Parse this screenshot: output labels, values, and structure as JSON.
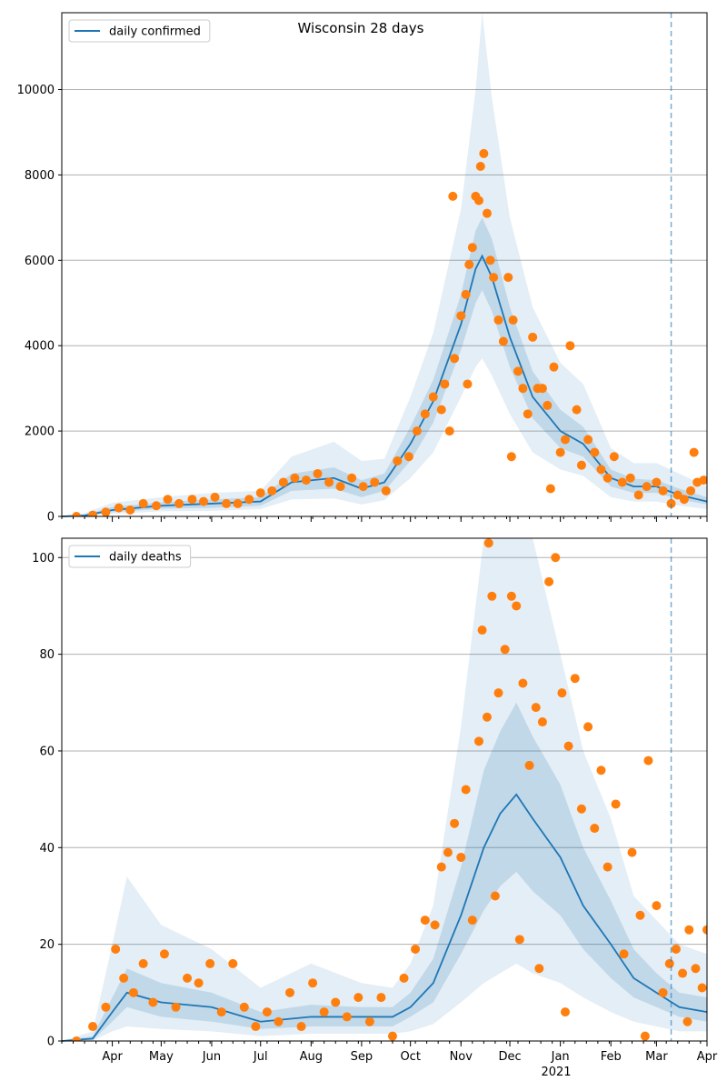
{
  "figure_title": "Wisconsin 28 days",
  "colors": {
    "line": "#1f77b4",
    "band": "#1f77b4",
    "points": "#ff7f0e",
    "grid": "#b0b0b0",
    "marker_line": "#1f77b4"
  },
  "x_axis": {
    "tick_labels": [
      "Apr",
      "May",
      "Jun",
      "Jul",
      "Aug",
      "Sep",
      "Oct",
      "Nov",
      "Dec",
      "Jan",
      "Feb",
      "Mar",
      "Apr"
    ],
    "tick_dates": [
      "2020-04-01",
      "2020-05-01",
      "2020-06-01",
      "2020-07-01",
      "2020-08-01",
      "2020-09-01",
      "2020-10-01",
      "2020-11-01",
      "2020-12-01",
      "2021-01-01",
      "2021-02-01",
      "2021-03-01",
      "2021-04-01"
    ],
    "year_label": "2021",
    "range": [
      "2020-03-01",
      "2021-04-01"
    ],
    "forecast_start": "2021-03-10"
  },
  "chart_data": [
    {
      "type": "line",
      "legend": "daily confirmed",
      "legend_position": "top-left",
      "grid": "horizontal",
      "ylim": [
        0,
        11800
      ],
      "yticks": [
        0,
        2000,
        4000,
        6000,
        8000,
        10000
      ],
      "x": [
        "2020-03-01",
        "2020-03-15",
        "2020-04-01",
        "2020-05-01",
        "2020-06-01",
        "2020-07-01",
        "2020-07-20",
        "2020-08-15",
        "2020-09-01",
        "2020-09-15",
        "2020-10-01",
        "2020-10-15",
        "2020-11-01",
        "2020-11-10",
        "2020-11-14",
        "2020-11-20",
        "2020-12-01",
        "2020-12-15",
        "2021-01-01",
        "2021-01-15",
        "2021-02-01",
        "2021-02-15",
        "2021-03-01",
        "2021-03-15",
        "2021-04-01"
      ],
      "median": [
        0,
        20,
        150,
        250,
        300,
        350,
        800,
        900,
        650,
        800,
        1700,
        2700,
        4500,
        5800,
        6100,
        5600,
        4200,
        2800,
        2000,
        1700,
        900,
        700,
        700,
        500,
        350
      ],
      "band_inner": {
        "lower": [
          0,
          10,
          100,
          180,
          200,
          250,
          600,
          650,
          450,
          600,
          1300,
          2200,
          3900,
          5000,
          5300,
          4800,
          3500,
          2300,
          1600,
          1400,
          700,
          550,
          550,
          400,
          280
        ],
        "upper": [
          0,
          40,
          220,
          330,
          400,
          450,
          1000,
          1150,
          850,
          1000,
          2100,
          3200,
          5200,
          6700,
          7000,
          6500,
          4900,
          3400,
          2500,
          2100,
          1100,
          880,
          850,
          650,
          450
        ]
      },
      "band_outer": {
        "lower": [
          0,
          5,
          60,
          120,
          130,
          170,
          400,
          420,
          280,
          380,
          900,
          1500,
          2800,
          3500,
          3700,
          3300,
          2400,
          1500,
          1100,
          950,
          450,
          350,
          350,
          250,
          170
        ],
        "upper": [
          0,
          80,
          320,
          450,
          550,
          600,
          1400,
          1750,
          1300,
          1350,
          2800,
          4300,
          7200,
          10000,
          11800,
          9800,
          7000,
          4900,
          3600,
          3100,
          1600,
          1250,
          1250,
          1000,
          700
        ]
      },
      "points": {
        "x": [
          "2020-03-10",
          "2020-03-20",
          "2020-03-28",
          "2020-04-05",
          "2020-04-12",
          "2020-04-20",
          "2020-04-28",
          "2020-05-05",
          "2020-05-12",
          "2020-05-20",
          "2020-05-27",
          "2020-06-03",
          "2020-06-10",
          "2020-06-17",
          "2020-06-24",
          "2020-07-01",
          "2020-07-08",
          "2020-07-15",
          "2020-07-22",
          "2020-07-29",
          "2020-08-05",
          "2020-08-12",
          "2020-08-19",
          "2020-08-26",
          "2020-09-02",
          "2020-09-09",
          "2020-09-16",
          "2020-09-23",
          "2020-09-30",
          "2020-10-05",
          "2020-10-10",
          "2020-10-15",
          "2020-10-20",
          "2020-10-22",
          "2020-10-25",
          "2020-10-28",
          "2020-11-01",
          "2020-11-04",
          "2020-11-06",
          "2020-11-08",
          "2020-11-10",
          "2020-11-12",
          "2020-11-13",
          "2020-11-15",
          "2020-11-17",
          "2020-11-19",
          "2020-11-21",
          "2020-11-24",
          "2020-11-27",
          "2020-11-30",
          "2020-12-03",
          "2020-12-06",
          "2020-12-09",
          "2020-12-12",
          "2020-12-15",
          "2020-12-18",
          "2020-12-21",
          "2020-12-24",
          "2020-12-28",
          "2021-01-01",
          "2021-01-04",
          "2021-01-07",
          "2021-01-11",
          "2021-01-14",
          "2021-01-18",
          "2021-01-22",
          "2021-01-26",
          "2021-01-30",
          "2021-02-03",
          "2021-02-08",
          "2021-02-13",
          "2021-02-18",
          "2021-02-23",
          "2021-03-01",
          "2021-03-05",
          "2021-03-10",
          "2021-03-14",
          "2021-03-18",
          "2021-03-22",
          "2021-03-26",
          "2021-03-30",
          "2021-03-24",
          "2020-10-27",
          "2020-11-05",
          "2020-12-02",
          "2020-12-26"
        ],
        "y": [
          0,
          30,
          100,
          200,
          150,
          300,
          250,
          400,
          300,
          400,
          350,
          450,
          300,
          300,
          400,
          550,
          600,
          800,
          900,
          850,
          1000,
          800,
          700,
          900,
          700,
          800,
          600,
          1300,
          1400,
          2000,
          2400,
          2800,
          2500,
          3100,
          2000,
          3700,
          4700,
          5200,
          5900,
          6300,
          7500,
          7400,
          8200,
          8500,
          7100,
          6000,
          5600,
          4600,
          4100,
          5600,
          4600,
          3400,
          3000,
          2400,
          4200,
          3000,
          3000,
          2600,
          3500,
          1500,
          1800,
          4000,
          2500,
          1200,
          1800,
          1500,
          1100,
          900,
          1400,
          800,
          900,
          500,
          700,
          800,
          600,
          300,
          500,
          400,
          600,
          800,
          850,
          1500,
          7500,
          3100,
          1400,
          650
        ]
      }
    },
    {
      "type": "line",
      "legend": "daily deaths",
      "legend_position": "top-left",
      "grid": "horizontal",
      "ylim": [
        0,
        104
      ],
      "yticks": [
        0,
        20,
        40,
        60,
        80,
        100
      ],
      "x": [
        "2020-03-01",
        "2020-03-20",
        "2020-04-01",
        "2020-04-10",
        "2020-05-01",
        "2020-06-01",
        "2020-07-01",
        "2020-08-01",
        "2020-09-01",
        "2020-09-20",
        "2020-10-01",
        "2020-10-15",
        "2020-11-01",
        "2020-11-15",
        "2020-11-25",
        "2020-12-05",
        "2020-12-15",
        "2021-01-01",
        "2021-01-15",
        "2021-02-01",
        "2021-02-15",
        "2021-03-01",
        "2021-03-15",
        "2021-04-01"
      ],
      "median": [
        0,
        0.5,
        6,
        10,
        8,
        7,
        4,
        5,
        5,
        5,
        7,
        12,
        26,
        40,
        47,
        51,
        46,
        38,
        28,
        20,
        13,
        10,
        7,
        6
      ],
      "band_inner": {
        "lower": [
          0,
          0.2,
          4,
          7,
          5,
          4,
          2.5,
          3,
          3,
          3,
          5,
          8,
          18,
          27,
          32,
          35,
          31,
          26,
          19,
          13,
          9,
          7,
          5,
          4
        ],
        "upper": [
          0,
          1,
          9,
          15,
          12,
          10,
          6,
          7.5,
          7,
          7,
          10,
          17,
          36,
          56,
          64,
          70,
          63,
          53,
          40,
          29,
          19,
          14,
          10,
          9
        ]
      },
      "band_outer": {
        "lower": [
          0,
          0.05,
          2,
          3,
          2.5,
          2,
          1,
          1.5,
          1.5,
          1.5,
          2,
          3.5,
          8,
          12,
          14,
          16,
          14,
          12,
          9,
          6,
          4,
          3,
          2,
          2
        ],
        "upper": [
          0,
          2,
          20,
          34,
          24,
          19,
          11,
          16,
          12,
          11,
          16,
          28,
          65,
          104,
          104,
          104,
          104,
          80,
          60,
          46,
          30,
          25,
          20,
          18
        ]
      },
      "points": {
        "x": [
          "2020-03-10",
          "2020-03-20",
          "2020-03-28",
          "2020-04-03",
          "2020-04-08",
          "2020-04-14",
          "2020-04-20",
          "2020-04-26",
          "2020-05-03",
          "2020-05-10",
          "2020-05-17",
          "2020-05-24",
          "2020-05-31",
          "2020-06-07",
          "2020-06-14",
          "2020-06-21",
          "2020-06-28",
          "2020-07-05",
          "2020-07-12",
          "2020-07-19",
          "2020-07-26",
          "2020-08-02",
          "2020-08-09",
          "2020-08-16",
          "2020-08-23",
          "2020-08-30",
          "2020-09-06",
          "2020-09-13",
          "2020-09-20",
          "2020-09-27",
          "2020-10-04",
          "2020-10-10",
          "2020-10-16",
          "2020-10-20",
          "2020-10-24",
          "2020-10-28",
          "2020-11-01",
          "2020-11-04",
          "2020-11-08",
          "2020-11-12",
          "2020-11-14",
          "2020-11-17",
          "2020-11-20",
          "2020-11-24",
          "2020-11-28",
          "2020-12-02",
          "2020-12-05",
          "2020-12-09",
          "2020-12-13",
          "2020-12-17",
          "2020-12-21",
          "2020-12-25",
          "2020-12-29",
          "2021-01-02",
          "2021-01-06",
          "2021-01-10",
          "2021-01-14",
          "2021-01-18",
          "2021-01-22",
          "2021-01-26",
          "2021-01-30",
          "2021-02-04",
          "2021-02-09",
          "2021-02-14",
          "2021-02-19",
          "2021-02-24",
          "2021-03-01",
          "2021-03-05",
          "2021-03-09",
          "2021-03-13",
          "2021-03-17",
          "2021-03-21",
          "2021-03-25",
          "2021-03-29",
          "2021-04-01",
          "2020-11-18",
          "2020-11-22",
          "2020-12-07",
          "2020-12-19",
          "2021-01-04",
          "2021-02-22",
          "2021-03-20"
        ],
        "y": [
          0,
          3,
          7,
          19,
          13,
          10,
          16,
          8,
          18,
          7,
          13,
          12,
          16,
          6,
          16,
          7,
          3,
          6,
          4,
          10,
          3,
          12,
          6,
          8,
          5,
          9,
          4,
          9,
          1,
          13,
          19,
          25,
          24,
          36,
          39,
          45,
          38,
          52,
          25,
          62,
          85,
          67,
          92,
          72,
          81,
          92,
          90,
          74,
          57,
          69,
          66,
          95,
          100,
          72,
          61,
          75,
          48,
          65,
          44,
          56,
          36,
          49,
          18,
          39,
          26,
          58,
          28,
          10,
          16,
          19,
          14,
          23,
          15,
          11,
          23,
          103,
          30,
          21,
          15,
          6,
          1,
          4
        ]
      }
    }
  ]
}
